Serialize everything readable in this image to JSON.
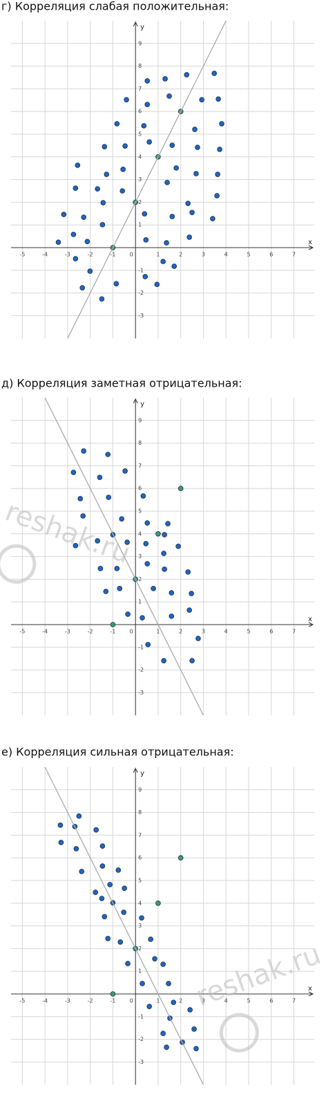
{
  "watermark": "reshak.ru",
  "chart_data": [
    {
      "type": "scatter",
      "title": "г) Корреляция слабая положительная:",
      "x_label": "x",
      "y_label": "y",
      "xlim": [
        -5.5,
        7.9
      ],
      "ylim": [
        -4,
        10
      ],
      "xticks": [
        -5,
        -4,
        -3,
        -2,
        -1,
        0,
        1,
        2,
        3,
        4,
        5,
        6,
        7
      ],
      "yticks": [
        -3,
        -2,
        -1,
        1,
        2,
        3,
        4,
        5,
        6,
        7,
        8,
        9
      ],
      "grid": true,
      "series": [
        {
          "color": "#1f66c4",
          "mode": "points",
          "x": [
            -3.41,
            -3.17,
            -2.74,
            -2.65,
            -2.65,
            -2.56,
            -2.29,
            -2.13,
            -2.01,
            -2.35,
            -1.68,
            -1.46,
            -1.43,
            -1.37,
            -1.28,
            -1.49,
            -0.82,
            -0.85,
            -0.55,
            -0.58,
            -0.46,
            -0.4,
            0.4,
            0.37,
            0.46,
            0.43,
            0.52,
            0.52,
            0.61,
            0.95,
            1.22,
            1.31,
            1.4,
            1.37,
            1.49,
            1.62,
            1.62,
            1.71,
            1.8,
            2.26,
            2.32,
            2.38,
            2.5,
            2.62,
            2.68,
            2.74,
            2.93,
            3.41,
            3.48,
            3.6,
            3.63,
            3.66,
            3.72,
            3.81
          ],
          "y": [
            0.24,
            1.46,
            0.58,
            -0.49,
            2.62,
            3.63,
            1.34,
            0.27,
            -1.04,
            -1.77,
            2.59,
            1.01,
            1.98,
            4.45,
            3.23,
            -2.26,
            5.46,
            -1.59,
            3.45,
            2.5,
            4.48,
            6.52,
            1.49,
            5.37,
            0.34,
            -1.28,
            7.35,
            6.31,
            4.66,
            -1.62,
            -0.61,
            7.44,
            2.87,
            0.21,
            6.68,
            4.51,
            1.37,
            -0.82,
            3.51,
            7.62,
            1.95,
            0.46,
            1.55,
            5.21,
            3.26,
            4.42,
            6.52,
            1.28,
            7.68,
            2.29,
            3.23,
            6.55,
            4.33,
            5.46
          ]
        },
        {
          "color": "#3d9a7a",
          "mode": "points",
          "x": [
            -1,
            0,
            1,
            2
          ],
          "y": [
            0,
            2,
            4,
            6
          ]
        },
        {
          "color": "#aaaaaa",
          "mode": "line",
          "x": [
            -3,
            4
          ],
          "y": [
            -4,
            10
          ]
        }
      ]
    },
    {
      "type": "scatter",
      "title": "д) Корреляция заметная отрицательная:",
      "x_label": "x",
      "y_label": "y",
      "xlim": [
        -5.5,
        7.9
      ],
      "ylim": [
        -4,
        10
      ],
      "xticks": [
        -5,
        -4,
        -3,
        -2,
        -1,
        0,
        1,
        2,
        3,
        4,
        5,
        6,
        7
      ],
      "yticks": [
        -3,
        -2,
        -1,
        1,
        2,
        3,
        4,
        5,
        6,
        7,
        8,
        9
      ],
      "grid": true,
      "series": [
        {
          "color": "#1f66c4",
          "mode": "points",
          "x": [
            -2.74,
            -2.29,
            -2.44,
            -2.32,
            -2.65,
            -1.68,
            -1.58,
            -1.55,
            -1.31,
            -1.22,
            -1.19,
            -1,
            -0.82,
            -0.7,
            -0.61,
            -0.46,
            -0.37,
            -0.34,
            0.3,
            0.34,
            0.46,
            0.52,
            0.52,
            0.55,
            0.79,
            1.25,
            1.25,
            1.28,
            1.28,
            1.43,
            1.59,
            1.59,
            1.89,
            2.32,
            2.38,
            2.47,
            2.5,
            2.77
          ],
          "y": [
            6.71,
            7.65,
            5.55,
            4.79,
            3.48,
            3.69,
            6.49,
            2.47,
            1.46,
            7.5,
            5.61,
            3.96,
            2.47,
            1.59,
            4.66,
            6.77,
            3.63,
            0.46,
            0.3,
            5.67,
            3.57,
            4.48,
            2.68,
            -0.88,
            1.59,
            3.14,
            -1.59,
            3.96,
            2.44,
            4.45,
            1.4,
            0.37,
            3.45,
            2.32,
            0.64,
            1.37,
            -1.59,
            -0.61
          ]
        },
        {
          "color": "#3d9a7a",
          "mode": "points",
          "x": [
            -1,
            0,
            1,
            2
          ],
          "y": [
            0,
            2,
            4,
            6
          ]
        },
        {
          "color": "#aaaaaa",
          "mode": "line",
          "x": [
            -4,
            3
          ],
          "y": [
            10,
            -4
          ]
        }
      ]
    },
    {
      "type": "scatter",
      "title": "е) Корреляция сильная отрицательная:",
      "x_label": "x",
      "y_label": "y",
      "xlim": [
        -5.5,
        7.9
      ],
      "ylim": [
        -4,
        10
      ],
      "xticks": [
        -5,
        -4,
        -3,
        -2,
        -1,
        0,
        1,
        2,
        3,
        4,
        5,
        6,
        7
      ],
      "yticks": [
        -3,
        -2,
        -1,
        1,
        2,
        3,
        4,
        5,
        6,
        7,
        8,
        9
      ],
      "grid": true,
      "series": [
        {
          "color": "#1f66c4",
          "mode": "points",
          "x": [
            -3.32,
            -3.29,
            -2.68,
            -2.5,
            -2.62,
            -2.38,
            -1.74,
            -1.46,
            -1.46,
            -1.77,
            -1.49,
            -1.13,
            -1,
            -0.76,
            -0.49,
            -1.37,
            -1.22,
            -0.67,
            -0.52,
            -0.34,
            0.27,
            0.3,
            0.61,
            0.67,
            0.85,
            1.22,
            1.22,
            1.37,
            1.46,
            1.52,
            1.68,
            2.07,
            2.41,
            2.59,
            2.68
          ],
          "y": [
            7.44,
            6.68,
            7.38,
            7.84,
            6.4,
            5.4,
            7.23,
            6.52,
            5.64,
            4.48,
            4.21,
            4.82,
            4.02,
            5.46,
            4.66,
            3.41,
            2.44,
            2.29,
            3.6,
            1.34,
            3.35,
            0.46,
            -0.55,
            2.41,
            1.55,
            1.31,
            -1.74,
            -2.35,
            0.46,
            -1.07,
            -0.37,
            -2.13,
            -0.7,
            -1.55,
            -2.41
          ]
        },
        {
          "color": "#3d9a7a",
          "mode": "points",
          "x": [
            -1,
            0,
            1,
            2
          ],
          "y": [
            0,
            2,
            4,
            6
          ]
        },
        {
          "color": "#aaaaaa",
          "mode": "line",
          "x": [
            -4,
            3
          ],
          "y": [
            10,
            -4
          ]
        }
      ]
    }
  ]
}
